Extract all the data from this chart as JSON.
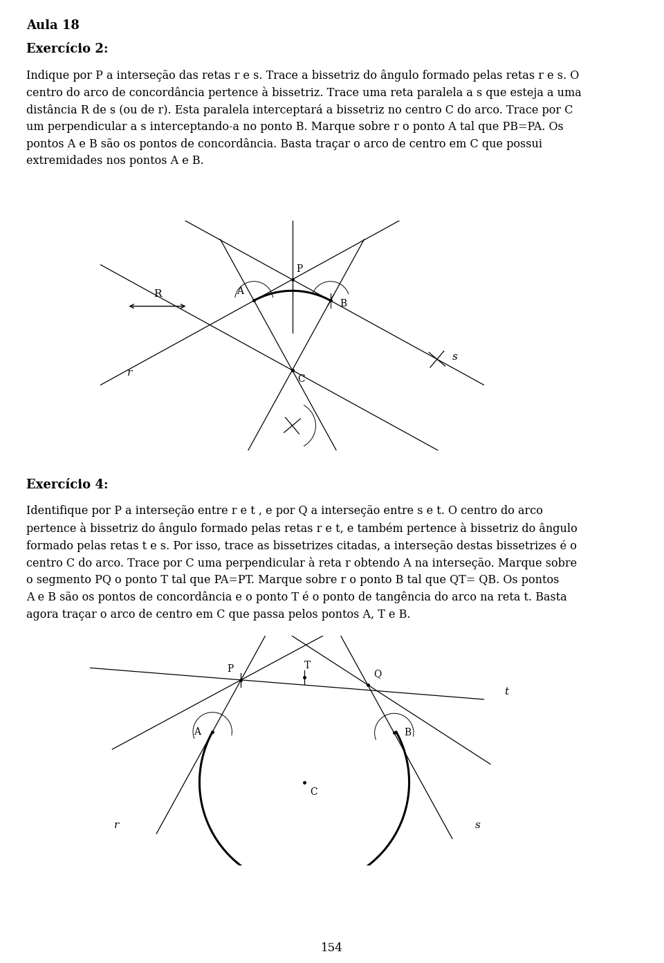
{
  "bg_color": "#ffffff",
  "text_color": "#000000",
  "title": "Aula 18",
  "ex2_title": "Exercício 2:",
  "ex2_text": "Indique por P a interseção das retas r e s. Trace a bissetriz do ângulo formado pelas retas r e s. O\ncentro do arco de concordância pertence à bissetriz. Trace uma reta paralela a s que esteja a uma\ndistância R de s (ou de r). Esta paralela interceptará a bissetriz no centro C do arco. Trace por C\num perpendicular a s interceptando-a no ponto B. Marque sobre r o ponto A tal que PB=PA. Os\npontos A e B são os pontos de concordância. Basta traçar o arco de centro em C que possui\nextremidades nos pontos A e B.",
  "ex4_title": "Exercício 4:",
  "ex4_text": "Identifique por P a interseção entre r e t , e por Q a interseção entre s e t. O centro do arco\npertence à bissetriz do ângulo formado pelas retas r e t, e também pertence à bissetriz do ângulo\nformado pelas retas t e s. Por isso, trace as bissetrizes citadas, a interseção destas bissetrizes é o\ncentro C do arco. Trace por C uma perpendicular à reta r obtendo A na interseção. Marque sobre\no segmento PQ o ponto T tal que PA=PT. Marque sobre r o ponto B tal que QT= QB. Os pontos\nA e B são os pontos de concordância e o ponto T é o ponto de tangência do arco na reta t. Basta\nagora traçar o arco de centro em C que passa pelos pontos A, T e B.",
  "page_num": "154"
}
